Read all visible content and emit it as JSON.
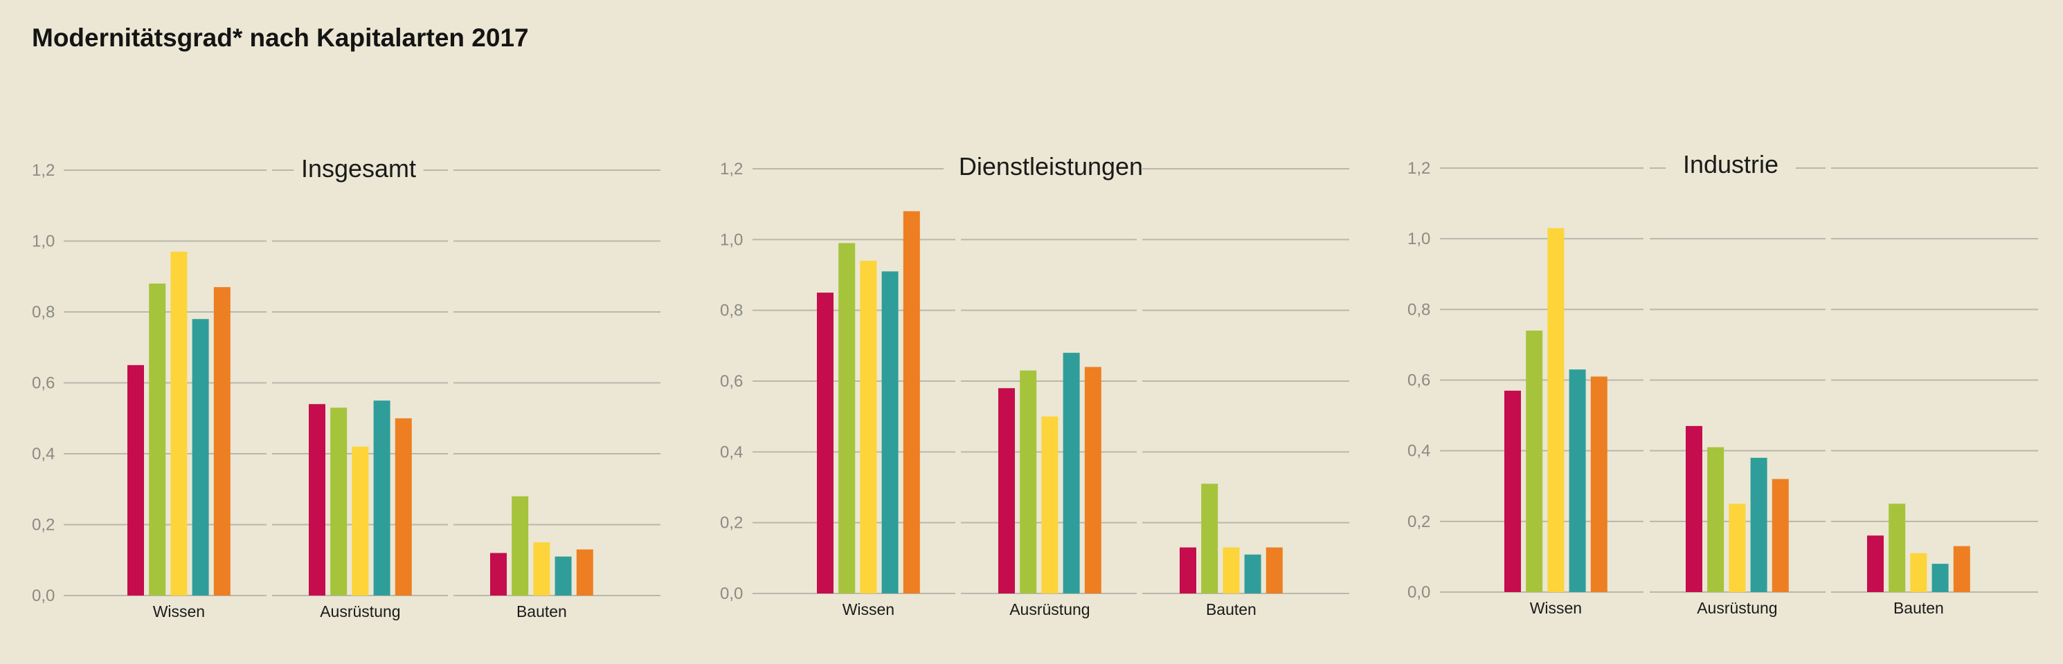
{
  "page": {
    "title": "Modernitätsgrad* nach Kapitalarten 2017",
    "background": "#ebe7d4"
  },
  "colors": {
    "series": [
      "#c50c4c",
      "#a5c43b",
      "#fdd43a",
      "#2f9e9a",
      "#ee7e22"
    ],
    "grid": "#b9b7ad",
    "tick_text": "#8b8a85",
    "label_text": "#1a1a1a"
  },
  "chart_data": [
    {
      "type": "bar",
      "title": "Insgesamt",
      "categories": [
        "Wissen",
        "Ausrüstung",
        "Bauten"
      ],
      "yticks": [
        "0,0",
        "0,2",
        "0,4",
        "0,6",
        "0,8",
        "1,0",
        "1,2"
      ],
      "ylim": [
        0,
        1.2
      ],
      "grid": true,
      "legend": "none",
      "series": [
        {
          "values": [
            0.65,
            0.54,
            0.12
          ]
        },
        {
          "values": [
            0.88,
            0.53,
            0.28
          ]
        },
        {
          "values": [
            0.97,
            0.42,
            0.15
          ]
        },
        {
          "values": [
            0.78,
            0.55,
            0.11
          ]
        },
        {
          "values": [
            0.87,
            0.5,
            0.13
          ]
        }
      ]
    },
    {
      "type": "bar",
      "title": "Dienstleistungen",
      "categories": [
        "Wissen",
        "Ausrüstung",
        "Bauten"
      ],
      "yticks": [
        "0,0",
        "0,2",
        "0,4",
        "0,6",
        "0,8",
        "1,0",
        "1,2"
      ],
      "ylim": [
        0,
        1.2
      ],
      "grid": true,
      "legend": "none",
      "series": [
        {
          "values": [
            0.85,
            0.58,
            0.13
          ]
        },
        {
          "values": [
            0.99,
            0.63,
            0.31
          ]
        },
        {
          "values": [
            0.94,
            0.5,
            0.13
          ]
        },
        {
          "values": [
            0.91,
            0.68,
            0.11
          ]
        },
        {
          "values": [
            1.08,
            0.64,
            0.13
          ]
        }
      ]
    },
    {
      "type": "bar",
      "title": "Industrie",
      "categories": [
        "Wissen",
        "Ausrüstung",
        "Bauten"
      ],
      "yticks": [
        "0,0",
        "0,2",
        "0,4",
        "0,6",
        "0,8",
        "1,0",
        "1,2"
      ],
      "ylim": [
        0,
        1.2
      ],
      "grid": true,
      "legend": "none",
      "series": [
        {
          "values": [
            0.57,
            0.47,
            0.16
          ]
        },
        {
          "values": [
            0.74,
            0.41,
            0.25
          ]
        },
        {
          "values": [
            1.03,
            0.25,
            0.11
          ]
        },
        {
          "values": [
            0.63,
            0.38,
            0.08
          ]
        },
        {
          "values": [
            0.61,
            0.32,
            0.13
          ]
        }
      ]
    }
  ]
}
